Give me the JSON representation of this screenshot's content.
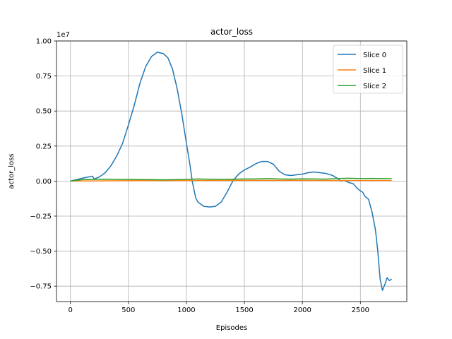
{
  "chart_data": {
    "type": "line",
    "title": "actor_loss",
    "xlabel": "Episodes",
    "ylabel": "actor_loss",
    "y_offset_label": "1e7",
    "xlim": [
      -120,
      2900
    ],
    "ylim": [
      -0.86,
      1.0
    ],
    "x_ticks": [
      0,
      500,
      1000,
      1500,
      2000,
      2500
    ],
    "y_ticks": [
      -0.75,
      -0.5,
      -0.25,
      0.0,
      0.25,
      0.5,
      0.75,
      1.0
    ],
    "y_tick_labels": [
      "−0.75",
      "−0.50",
      "−0.25",
      "0.00",
      "0.25",
      "0.50",
      "0.75",
      "1.00"
    ],
    "grid": true,
    "legend_position": "top-right",
    "series": [
      {
        "name": "Slice 0",
        "color": "#1f77b4",
        "points": [
          [
            0,
            0.0
          ],
          [
            100,
            0.02
          ],
          [
            190,
            0.035
          ],
          [
            205,
            0.015
          ],
          [
            250,
            0.03
          ],
          [
            300,
            0.06
          ],
          [
            350,
            0.11
          ],
          [
            400,
            0.18
          ],
          [
            450,
            0.27
          ],
          [
            500,
            0.4
          ],
          [
            550,
            0.54
          ],
          [
            600,
            0.7
          ],
          [
            650,
            0.82
          ],
          [
            700,
            0.89
          ],
          [
            750,
            0.92
          ],
          [
            800,
            0.91
          ],
          [
            840,
            0.88
          ],
          [
            880,
            0.8
          ],
          [
            920,
            0.66
          ],
          [
            960,
            0.48
          ],
          [
            1000,
            0.27
          ],
          [
            1030,
            0.12
          ],
          [
            1050,
            0.0
          ],
          [
            1080,
            -0.12
          ],
          [
            1100,
            -0.15
          ],
          [
            1150,
            -0.18
          ],
          [
            1200,
            -0.185
          ],
          [
            1250,
            -0.18
          ],
          [
            1300,
            -0.15
          ],
          [
            1350,
            -0.08
          ],
          [
            1400,
            0.0
          ],
          [
            1450,
            0.05
          ],
          [
            1500,
            0.08
          ],
          [
            1550,
            0.1
          ],
          [
            1600,
            0.125
          ],
          [
            1650,
            0.14
          ],
          [
            1700,
            0.14
          ],
          [
            1750,
            0.12
          ],
          [
            1800,
            0.07
          ],
          [
            1850,
            0.045
          ],
          [
            1900,
            0.04
          ],
          [
            1950,
            0.045
          ],
          [
            2000,
            0.05
          ],
          [
            2050,
            0.06
          ],
          [
            2100,
            0.065
          ],
          [
            2150,
            0.06
          ],
          [
            2200,
            0.055
          ],
          [
            2260,
            0.04
          ],
          [
            2300,
            0.02
          ],
          [
            2330,
            0.0
          ],
          [
            2360,
            0.005
          ],
          [
            2400,
            -0.01
          ],
          [
            2440,
            -0.02
          ],
          [
            2470,
            -0.05
          ],
          [
            2500,
            -0.07
          ],
          [
            2520,
            -0.08
          ],
          [
            2540,
            -0.11
          ],
          [
            2570,
            -0.13
          ],
          [
            2600,
            -0.22
          ],
          [
            2630,
            -0.35
          ],
          [
            2650,
            -0.5
          ],
          [
            2670,
            -0.7
          ],
          [
            2690,
            -0.78
          ],
          [
            2710,
            -0.74
          ],
          [
            2730,
            -0.69
          ],
          [
            2750,
            -0.71
          ],
          [
            2770,
            -0.7
          ]
        ]
      },
      {
        "name": "Slice 1",
        "color": "#ff7f0e",
        "points": [
          [
            0,
            0.0
          ],
          [
            500,
            0.003
          ],
          [
            1000,
            0.004
          ],
          [
            1500,
            0.005
          ],
          [
            2000,
            0.005
          ],
          [
            2300,
            0.004
          ],
          [
            2500,
            0.004
          ],
          [
            2770,
            0.004
          ]
        ]
      },
      {
        "name": "Slice 2",
        "color": "#2ca02c",
        "points": [
          [
            0,
            0.0
          ],
          [
            100,
            0.01
          ],
          [
            200,
            0.012
          ],
          [
            300,
            0.013
          ],
          [
            400,
            0.012
          ],
          [
            500,
            0.012
          ],
          [
            600,
            0.011
          ],
          [
            700,
            0.01
          ],
          [
            800,
            0.009
          ],
          [
            900,
            0.01
          ],
          [
            1000,
            0.012
          ],
          [
            1100,
            0.015
          ],
          [
            1200,
            0.013
          ],
          [
            1300,
            0.012
          ],
          [
            1400,
            0.013
          ],
          [
            1500,
            0.015
          ],
          [
            1600,
            0.015
          ],
          [
            1700,
            0.018
          ],
          [
            1800,
            0.015
          ],
          [
            1900,
            0.014
          ],
          [
            2000,
            0.016
          ],
          [
            2100,
            0.015
          ],
          [
            2200,
            0.014
          ],
          [
            2300,
            0.018
          ],
          [
            2400,
            0.02
          ],
          [
            2500,
            0.018
          ],
          [
            2600,
            0.019
          ],
          [
            2700,
            0.018
          ],
          [
            2770,
            0.017
          ]
        ]
      }
    ]
  }
}
